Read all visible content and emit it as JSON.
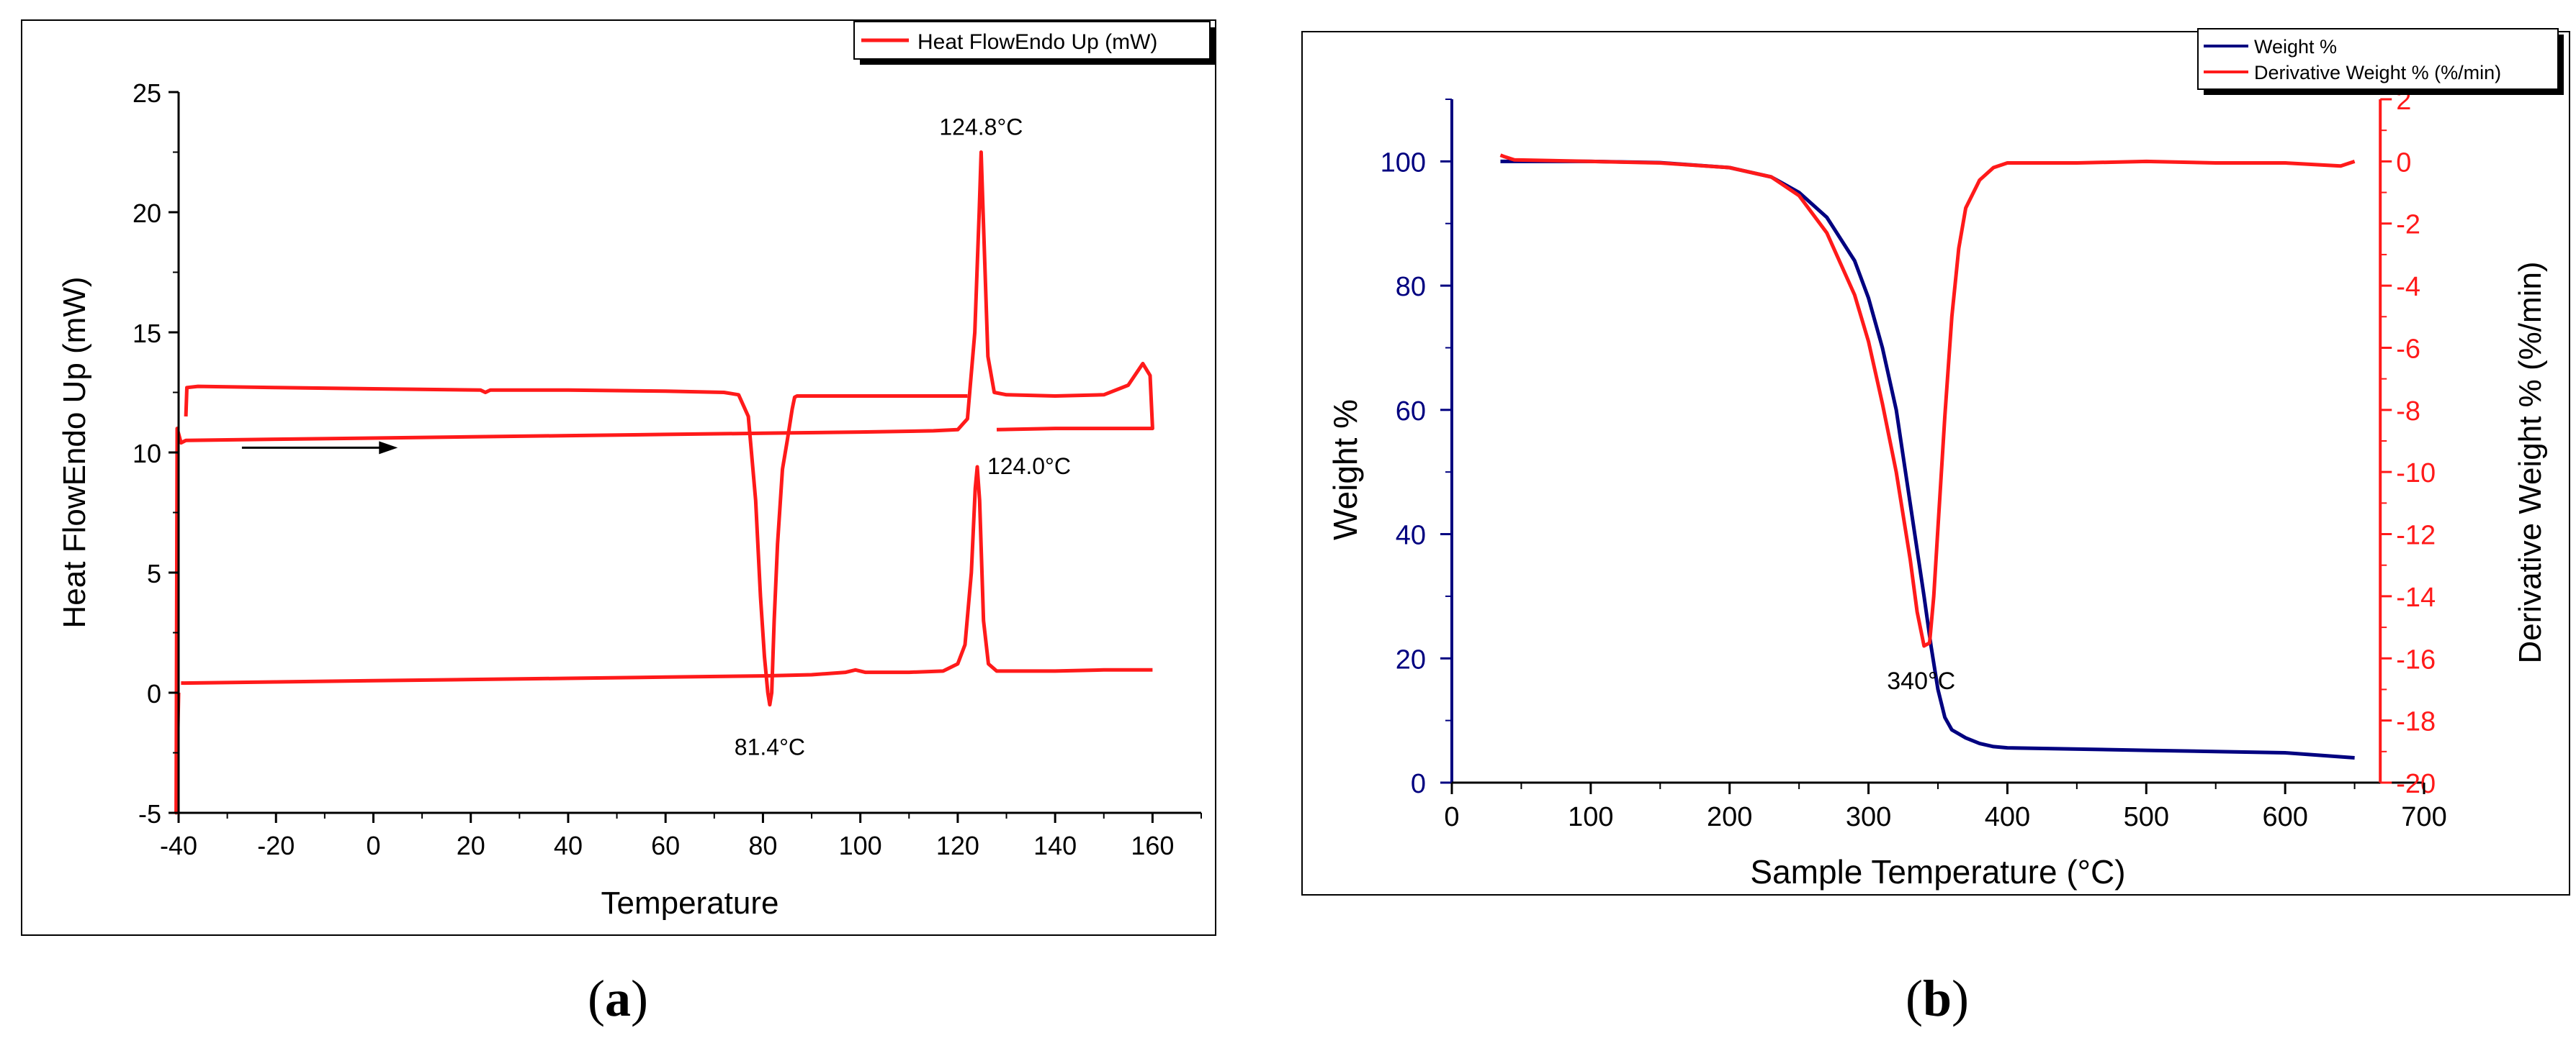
{
  "colors": {
    "red": "#ff1a1a",
    "blue": "#000080",
    "axis": "#000000"
  },
  "chart_data": [
    {
      "type": "line",
      "panel_label": "a",
      "xlabel": "Temperature",
      "ylabel": "Heat FlowEndo Up (mW)",
      "xlim": [
        -40,
        170
      ],
      "ylim": [
        -5,
        25
      ],
      "x_ticks": [
        "-40",
        "-20",
        "0",
        "20",
        "40",
        "60",
        "80",
        "100",
        "120",
        "140",
        "160"
      ],
      "y_ticks": [
        "-5",
        "0",
        "5",
        "10",
        "15",
        "20",
        "25"
      ],
      "legend": {
        "position": "top-right",
        "entries": [
          {
            "label": "Heat FlowEndo Up (mW)",
            "color": "#ff1a1a"
          }
        ]
      },
      "annotations": [
        {
          "text": "124.8°C",
          "x": 124.8,
          "y": 22.5
        },
        {
          "text": "124.0°C",
          "x": 124.0,
          "y": 9.4
        },
        {
          "text": "81.4°C",
          "x": 81.4,
          "y": -0.5
        }
      ],
      "arrow": {
        "from": [
          -27,
          10.2
        ],
        "to": [
          5,
          10.2
        ]
      },
      "series": [
        {
          "color": "#ff1a1a",
          "points": [
            [
              -40,
              0
            ],
            [
              -40.5,
              -5
            ],
            [
              -40.3,
              11
            ],
            [
              -39.5,
              10.4
            ],
            [
              -38.5,
              10.5
            ],
            [
              -20,
              10.55
            ],
            [
              0,
              10.6
            ],
            [
              20,
              10.65
            ],
            [
              40,
              10.7
            ],
            [
              60,
              10.75
            ],
            [
              80,
              10.8
            ],
            [
              100,
              10.85
            ],
            [
              115,
              10.9
            ],
            [
              120,
              10.95
            ],
            [
              122,
              11.4
            ],
            [
              123.5,
              15
            ],
            [
              124.4,
              20
            ],
            [
              124.8,
              22.5
            ],
            [
              125.2,
              20
            ],
            [
              126.2,
              14
            ],
            [
              127.5,
              12.5
            ],
            [
              130,
              12.4
            ],
            [
              140,
              12.35
            ],
            [
              150,
              12.4
            ],
            [
              155,
              12.8
            ],
            [
              158,
              13.7
            ],
            [
              159.5,
              13.2
            ],
            [
              160,
              11.0
            ],
            [
              140,
              11.0
            ],
            [
              128,
              10.95
            ]
          ]
        },
        {
          "color": "#ff1a1a",
          "points": [
            [
              -38.5,
              11.5
            ],
            [
              -38.3,
              12.7
            ],
            [
              -36,
              12.75
            ],
            [
              -20,
              12.7
            ],
            [
              0,
              12.65
            ],
            [
              22,
              12.6
            ],
            [
              23,
              12.5
            ],
            [
              24,
              12.6
            ],
            [
              40,
              12.6
            ],
            [
              60,
              12.55
            ],
            [
              72,
              12.5
            ],
            [
              75,
              12.4
            ],
            [
              77,
              11.5
            ],
            [
              78.5,
              8
            ],
            [
              79.5,
              4
            ],
            [
              80.3,
              1.5
            ],
            [
              81.0,
              0.0
            ],
            [
              81.4,
              -0.5
            ],
            [
              81.8,
              0
            ],
            [
              82.3,
              3
            ],
            [
              83.0,
              6.2
            ],
            [
              84.0,
              9.3
            ],
            [
              85.0,
              10.5
            ],
            [
              86.0,
              11.8
            ],
            [
              86.5,
              12.3
            ],
            [
              87,
              12.35
            ],
            [
              100,
              12.35
            ],
            [
              122,
              12.35
            ]
          ]
        },
        {
          "color": "#ff1a1a",
          "points": [
            [
              -39.5,
              0.4
            ],
            [
              -20,
              0.45
            ],
            [
              0,
              0.5
            ],
            [
              20,
              0.55
            ],
            [
              40,
              0.6
            ],
            [
              60,
              0.65
            ],
            [
              80,
              0.7
            ],
            [
              90,
              0.75
            ],
            [
              97,
              0.85
            ],
            [
              99,
              0.95
            ],
            [
              101,
              0.85
            ],
            [
              110,
              0.85
            ],
            [
              117,
              0.9
            ],
            [
              120,
              1.2
            ],
            [
              121.5,
              2.0
            ],
            [
              122.8,
              5
            ],
            [
              123.6,
              8.5
            ],
            [
              124.0,
              9.4
            ],
            [
              124.5,
              8
            ],
            [
              125.3,
              3
            ],
            [
              126.3,
              1.2
            ],
            [
              128,
              0.9
            ],
            [
              140,
              0.9
            ],
            [
              150,
              0.95
            ],
            [
              160,
              0.95
            ]
          ]
        }
      ]
    },
    {
      "type": "line",
      "panel_label": "b",
      "xlabel": "Sample Temperature (°C)",
      "ylabel": "Weight %",
      "ylabel_right": "Derivative Weight % (%/min)",
      "xlim": [
        0,
        700
      ],
      "ylim": [
        0,
        110
      ],
      "ylim_right": [
        -20,
        2
      ],
      "x_ticks": [
        "0",
        "100",
        "200",
        "300",
        "400",
        "500",
        "600",
        "700"
      ],
      "y_ticks": [
        "0",
        "20",
        "40",
        "60",
        "80",
        "100"
      ],
      "y_ticks_right": [
        "-20",
        "-18",
        "-16",
        "-14",
        "-12",
        "-10",
        "-8",
        "-6",
        "-4",
        "-2",
        "0",
        "2"
      ],
      "legend": {
        "position": "top-right",
        "entries": [
          {
            "label": "Weight %",
            "color": "#000080"
          },
          {
            "label": "Derivative Weight % (%/min)",
            "color": "#ff1a1a"
          }
        ]
      },
      "annotations": [
        {
          "text": "340°C",
          "x": 340,
          "y_right": -15.6
        }
      ],
      "series": [
        {
          "name": "Weight %",
          "axis": "left",
          "color": "#000080",
          "points": [
            [
              35,
              100
            ],
            [
              100,
              100
            ],
            [
              150,
              99.8
            ],
            [
              200,
              99
            ],
            [
              230,
              97.5
            ],
            [
              250,
              95
            ],
            [
              270,
              91
            ],
            [
              290,
              84
            ],
            [
              300,
              78
            ],
            [
              310,
              70
            ],
            [
              320,
              60
            ],
            [
              330,
              45
            ],
            [
              340,
              30
            ],
            [
              345,
              22
            ],
            [
              350,
              15
            ],
            [
              355,
              10.5
            ],
            [
              360,
              8.5
            ],
            [
              370,
              7.2
            ],
            [
              380,
              6.3
            ],
            [
              390,
              5.8
            ],
            [
              400,
              5.6
            ],
            [
              500,
              5.2
            ],
            [
              600,
              4.8
            ],
            [
              650,
              4.0
            ]
          ]
        },
        {
          "name": "Derivative Weight % (%/min)",
          "axis": "right",
          "color": "#ff1a1a",
          "points": [
            [
              35,
              0.2
            ],
            [
              38,
              0.15
            ],
            [
              45,
              0.05
            ],
            [
              100,
              0
            ],
            [
              150,
              -0.05
            ],
            [
              200,
              -0.2
            ],
            [
              230,
              -0.5
            ],
            [
              250,
              -1.1
            ],
            [
              270,
              -2.3
            ],
            [
              290,
              -4.3
            ],
            [
              300,
              -5.8
            ],
            [
              310,
              -7.8
            ],
            [
              320,
              -10
            ],
            [
              330,
              -12.8
            ],
            [
              335,
              -14.5
            ],
            [
              340,
              -15.6
            ],
            [
              344,
              -15.5
            ],
            [
              347,
              -14
            ],
            [
              350,
              -11.8
            ],
            [
              355,
              -8.2
            ],
            [
              360,
              -5
            ],
            [
              365,
              -2.8
            ],
            [
              370,
              -1.5
            ],
            [
              380,
              -0.6
            ],
            [
              390,
              -0.2
            ],
            [
              400,
              -0.05
            ],
            [
              450,
              -0.05
            ],
            [
              500,
              0
            ],
            [
              550,
              -0.05
            ],
            [
              600,
              -0.05
            ],
            [
              640,
              -0.15
            ],
            [
              650,
              0
            ]
          ]
        }
      ]
    }
  ]
}
